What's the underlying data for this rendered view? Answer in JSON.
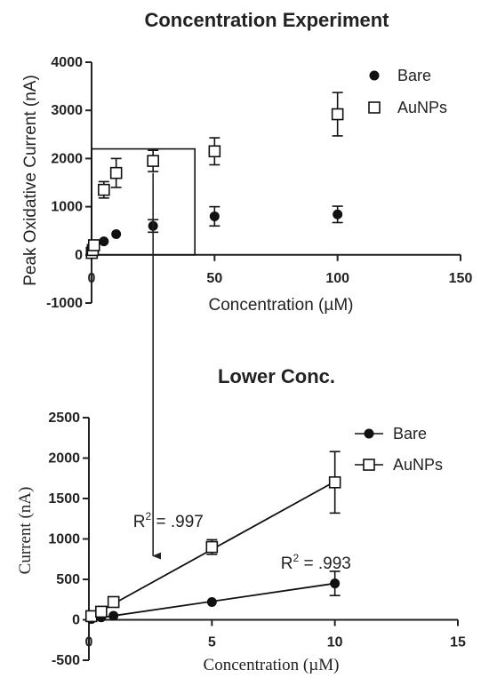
{
  "chart_data": [
    {
      "type": "scatter",
      "title": "Concentration  Experiment",
      "xlabel": "Concentration (µM)",
      "ylabel": "Peak  Oxidative  Current (nA)",
      "xlim": [
        0,
        150
      ],
      "ylim": [
        -1000,
        4000
      ],
      "x_ticks": [
        "0",
        "50",
        "100",
        "150"
      ],
      "y_ticks": [
        "-1000",
        "0",
        "1000",
        "2000",
        "3000",
        "4000"
      ],
      "legend_position": "top-right",
      "series": [
        {
          "name": "Bare",
          "marker": "filled-circle",
          "x": [
            0.1,
            0.5,
            1,
            5,
            10,
            25,
            50,
            100
          ],
          "y": [
            10,
            30,
            50,
            280,
            430,
            600,
            800,
            840
          ],
          "err": [
            5,
            10,
            15,
            80,
            120,
            130,
            200,
            170
          ]
        },
        {
          "name": "AuNPs",
          "marker": "open-square",
          "x": [
            0.1,
            0.5,
            1,
            5,
            10,
            25,
            50,
            100
          ],
          "y": [
            40,
            100,
            200,
            1350,
            1700,
            1950,
            2150,
            2920
          ],
          "err": [
            15,
            30,
            50,
            170,
            300,
            220,
            280,
            450
          ]
        }
      ],
      "inset_box": {
        "xlim": [
          0,
          42
        ],
        "ylim": [
          0,
          2200
        ]
      }
    },
    {
      "type": "scatter",
      "title": "Lower Conc.",
      "xlabel": "Concentration (µM)",
      "ylabel": "Current (nA)",
      "xlim": [
        0,
        15
      ],
      "ylim": [
        -500,
        2500
      ],
      "x_ticks": [
        "0",
        "5",
        "10",
        "15"
      ],
      "y_ticks": [
        "-500",
        "0",
        "500",
        "1000",
        "1500",
        "2000",
        "2500"
      ],
      "legend_position": "top-right",
      "series": [
        {
          "name": "Bare",
          "marker": "filled-circle",
          "x": [
            0.1,
            0.5,
            1,
            5,
            10
          ],
          "y": [
            10,
            30,
            50,
            220,
            450
          ],
          "err": [
            5,
            10,
            15,
            40,
            150
          ]
        },
        {
          "name": "AuNPs",
          "marker": "open-square",
          "x": [
            0.1,
            0.5,
            1,
            5,
            10
          ],
          "y": [
            45,
            100,
            220,
            900,
            1700
          ],
          "err": [
            15,
            30,
            40,
            90,
            380
          ]
        }
      ],
      "annotations": [
        {
          "base": "R",
          "sup": "2",
          "rest": " = .997",
          "x": 1.8,
          "y": 1150
        },
        {
          "base": "R",
          "sup": "2",
          "rest": " = .993",
          "x": 7.8,
          "y": 630
        }
      ],
      "fit_lines": [
        {
          "series": "AuNPs",
          "x": [
            0,
            10
          ],
          "y": [
            30,
            1710
          ]
        },
        {
          "series": "Bare",
          "x": [
            0,
            10
          ],
          "y": [
            5,
            450
          ]
        }
      ]
    }
  ]
}
